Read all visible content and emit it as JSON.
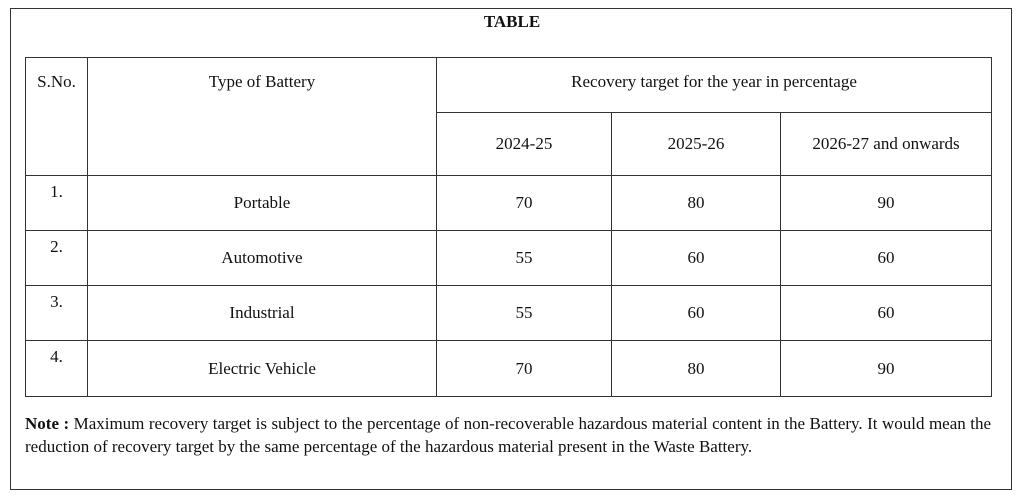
{
  "title": "TABLE",
  "table": {
    "header": {
      "sno": "S.No.",
      "type": "Type of Battery",
      "group": "Recovery target for the year in percentage",
      "years": [
        "2024-25",
        "2025-26",
        "2026-27 and onwards"
      ]
    },
    "rows": [
      [
        "1.",
        "Portable",
        70,
        80,
        90
      ],
      [
        "2.",
        "Automotive",
        55,
        60,
        60
      ],
      [
        "3.",
        "Industrial",
        55,
        60,
        60
      ],
      [
        "4.",
        "Electric Vehicle",
        70,
        80,
        90
      ]
    ]
  },
  "note": {
    "label": "Note :",
    "text": "Maximum recovery target is subject to the percentage of non-recoverable hazardous material content in the Battery. It would mean the reduction of recovery target by the same percentage of the hazardous material present in the Waste Battery."
  }
}
